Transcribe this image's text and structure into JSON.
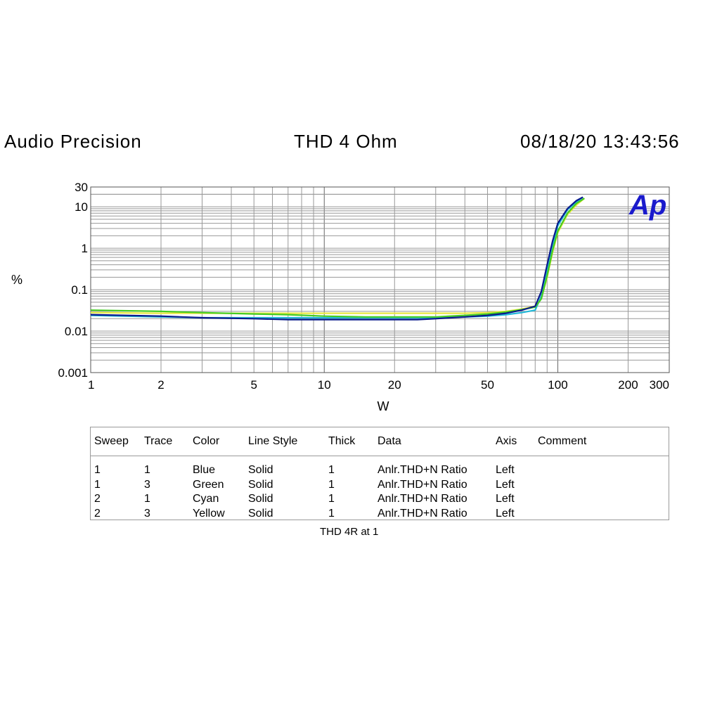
{
  "header": {
    "left": "Audio Precision",
    "center": "THD 4 Ohm",
    "right": "08/18/20 13:43:56"
  },
  "chart_data": {
    "type": "line",
    "title": "THD 4 Ohm",
    "xlabel": "W",
    "ylabel": "%",
    "xscale": "log",
    "yscale": "log",
    "xlim": [
      1,
      300
    ],
    "ylim": [
      0.001,
      30
    ],
    "xticks": [
      1,
      2,
      5,
      10,
      20,
      50,
      100,
      200,
      300
    ],
    "xtick_labels": [
      "1",
      "2",
      "5",
      "10",
      "20",
      "50",
      "100",
      "200",
      "300"
    ],
    "yticks": [
      0.001,
      0.01,
      0.1,
      1,
      10,
      30
    ],
    "ytick_labels": [
      "0.001",
      "0.01",
      "0.1",
      "1",
      "10",
      "30"
    ],
    "grid": true,
    "logo": "Ap",
    "logo_color": "#1a1acc",
    "series": [
      {
        "name": "Blue",
        "color": "#0a1a8c",
        "x": [
          1,
          2,
          3,
          5,
          7,
          10,
          15,
          20,
          25,
          30,
          40,
          50,
          60,
          70,
          80,
          85,
          90,
          95,
          100,
          110,
          120,
          128
        ],
        "y": [
          0.025,
          0.023,
          0.021,
          0.02,
          0.019,
          0.019,
          0.019,
          0.019,
          0.019,
          0.02,
          0.022,
          0.024,
          0.027,
          0.032,
          0.04,
          0.09,
          0.4,
          1.5,
          4,
          9,
          14,
          17
        ]
      },
      {
        "name": "Green",
        "color": "#44cc22",
        "x": [
          1,
          2,
          3,
          5,
          7,
          10,
          15,
          20,
          25,
          30,
          40,
          50,
          60,
          70,
          80,
          85,
          90,
          95,
          100,
          110,
          120,
          130
        ],
        "y": [
          0.032,
          0.03,
          0.028,
          0.026,
          0.025,
          0.023,
          0.022,
          0.022,
          0.022,
          0.022,
          0.024,
          0.026,
          0.029,
          0.033,
          0.038,
          0.06,
          0.22,
          0.9,
          2.6,
          7,
          12,
          16
        ]
      },
      {
        "name": "Cyan",
        "color": "#22b8d8",
        "x": [
          1,
          2,
          3,
          5,
          7,
          10,
          15,
          20,
          25,
          30,
          40,
          50,
          60,
          70,
          80,
          85,
          90,
          95,
          100,
          110,
          120,
          128
        ],
        "y": [
          0.024,
          0.022,
          0.021,
          0.021,
          0.021,
          0.021,
          0.021,
          0.021,
          0.021,
          0.021,
          0.022,
          0.023,
          0.025,
          0.028,
          0.032,
          0.07,
          0.3,
          1.2,
          3.5,
          8.5,
          13,
          17
        ]
      },
      {
        "name": "Yellow",
        "color": "#e8e840",
        "x": [
          1,
          2,
          3,
          5,
          7,
          10,
          15,
          20,
          25,
          30,
          40,
          50,
          60,
          70,
          80,
          85,
          90,
          95,
          100,
          110,
          120,
          130
        ],
        "y": [
          0.028,
          0.027,
          0.027,
          0.027,
          0.027,
          0.027,
          0.027,
          0.027,
          0.027,
          0.027,
          0.027,
          0.028,
          0.03,
          0.034,
          0.04,
          0.06,
          0.2,
          0.8,
          2.4,
          6.5,
          11,
          16
        ]
      }
    ]
  },
  "legend": {
    "headers": [
      "Sweep",
      "Trace",
      "Color",
      "Line Style",
      "Thick",
      "Data",
      "Axis",
      "Comment"
    ],
    "rows": [
      [
        "1",
        "1",
        "Blue",
        "Solid",
        "1",
        "Anlr.THD+N Ratio",
        "Left",
        ""
      ],
      [
        "1",
        "3",
        "Green",
        "Solid",
        "1",
        "Anlr.THD+N Ratio",
        "Left",
        ""
      ],
      [
        "2",
        "1",
        "Cyan",
        "Solid",
        "1",
        "Anlr.THD+N Ratio",
        "Left",
        ""
      ],
      [
        "2",
        "3",
        "Yellow",
        "Solid",
        "1",
        "Anlr.THD+N Ratio",
        "Left",
        ""
      ]
    ]
  },
  "caption": "THD 4R at 1"
}
